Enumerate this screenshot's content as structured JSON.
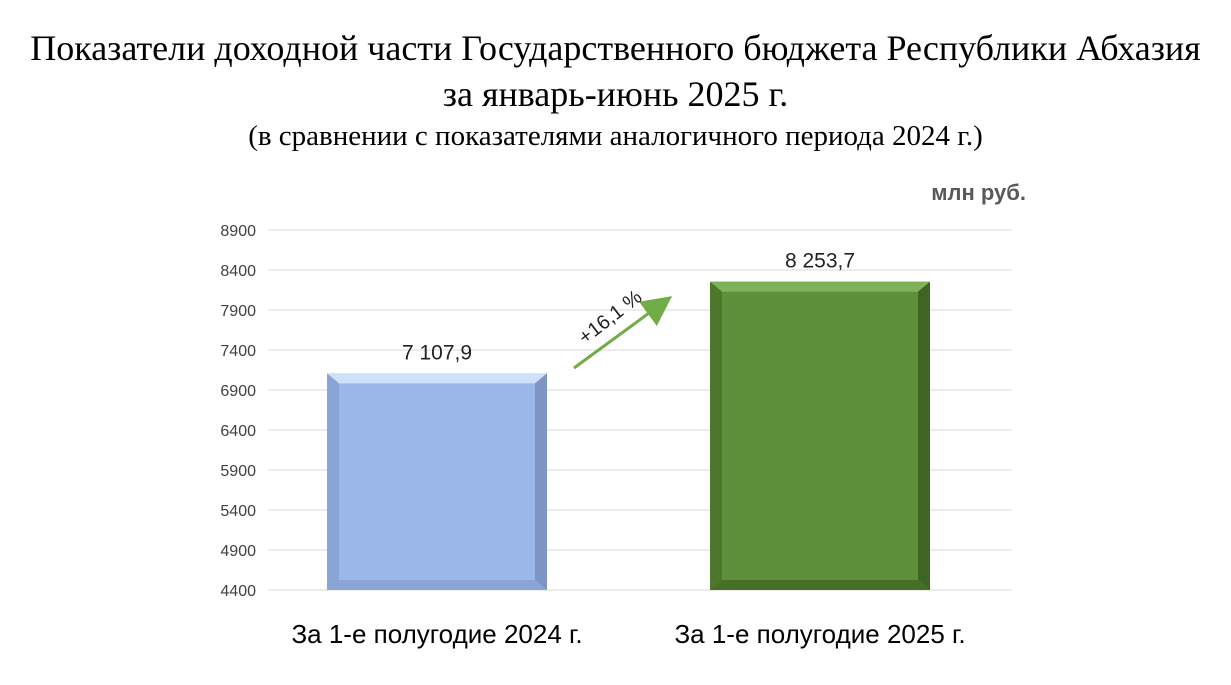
{
  "title": {
    "line1": "Показатели доходной части Государственного бюджета Республики Абхазия",
    "line2": "за январь-июнь 2025 г.",
    "line3": "(в сравнении с показателями аналогичного периода 2024 г.)"
  },
  "unit": "млн руб.",
  "colors": {
    "bar1": "#9bb7ea",
    "bar2": "#5e8f3a",
    "arrow": "#70ad47",
    "grid": "#d9d9d9"
  },
  "chart_data": {
    "type": "bar",
    "categories": [
      "За 1-е полугодие 2024 г.",
      "За 1-е полугодие 2025 г."
    ],
    "values": [
      7107.9,
      8253.7
    ],
    "data_labels": [
      "7 107,9",
      "8 253,7"
    ],
    "ylim": [
      4400,
      8900
    ],
    "yticks": [
      4400,
      4900,
      5400,
      5900,
      6400,
      6900,
      7400,
      7900,
      8400,
      8900
    ],
    "grid": true,
    "annotation": "+16,1 %"
  }
}
